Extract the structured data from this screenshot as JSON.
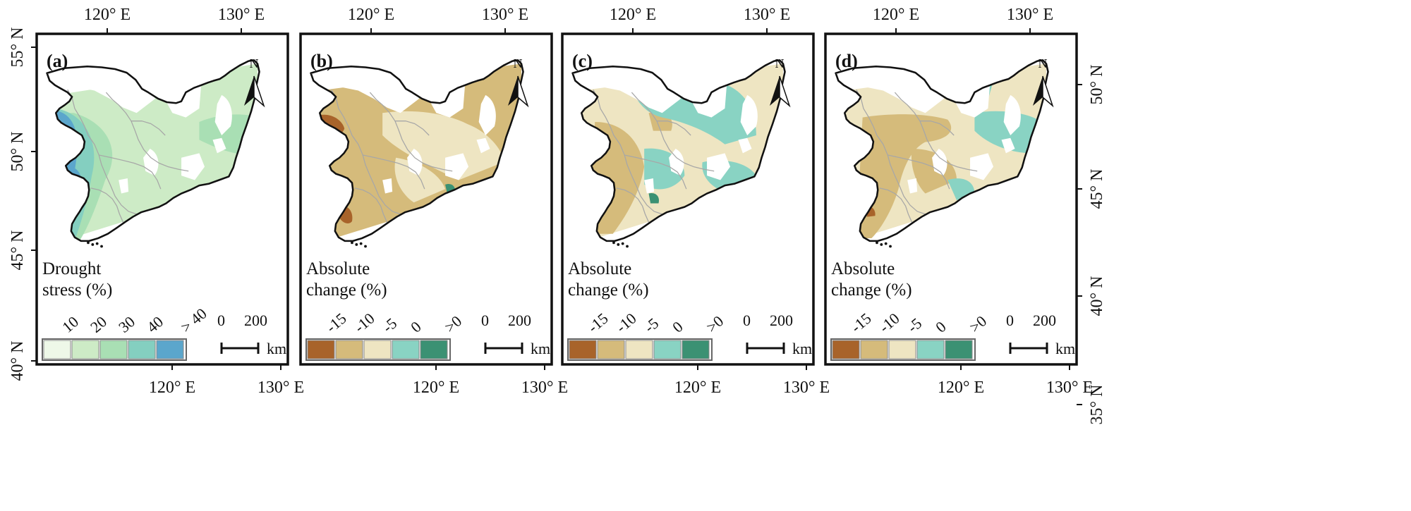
{
  "top_axis": {
    "labels": [
      "120° E",
      "130° E"
    ]
  },
  "bottom_axis": {
    "labels": [
      "120° E",
      "130° E"
    ]
  },
  "left_axis": {
    "labels": [
      "55° N",
      "50° N",
      "45° N",
      "40° N"
    ]
  },
  "right_axis": {
    "labels": [
      "50° N",
      "45° N",
      "40° N",
      "35° N"
    ]
  },
  "north_arrow": {
    "label": "N",
    "icon": "north-arrow-icon"
  },
  "scale_bar": {
    "label_0": "0",
    "label_200": "200",
    "unit": "km"
  },
  "province_border_color": "#a7a7a7",
  "panels": [
    {
      "id": "a",
      "label": "(a)",
      "legend_title_line1": "Drought",
      "legend_title_line2": "stress (%)",
      "legend_ticks": [
        "10",
        "20",
        "30",
        "40",
        "> 40"
      ],
      "legend_colors": [
        "#eef8e8",
        "#cdebc6",
        "#a9dfb4",
        "#84cfc0",
        "#5ba6cc"
      ],
      "map_fills": [
        "#cdebc6",
        "#a9dfb4",
        "#84cfc0",
        "#5ba6cc"
      ]
    },
    {
      "id": "b",
      "label": "(b)",
      "legend_title_line1": "Absolute",
      "legend_title_line2": "change (%)",
      "legend_ticks": [
        "-15",
        "-10",
        "-5",
        "0",
        ">0"
      ],
      "legend_colors": [
        "#a8632a",
        "#d5bb7b",
        "#eee5c2",
        "#89d3c3",
        "#3b9173"
      ],
      "map_fills": [
        "#d5bb7b",
        "#eee5c2",
        "#a8632a",
        "#89d3c3",
        "#3b9173"
      ]
    },
    {
      "id": "c",
      "label": "(c)",
      "legend_title_line1": "Absolute",
      "legend_title_line2": "change (%)",
      "legend_ticks": [
        "-15",
        "-10",
        "-5",
        "0",
        ">0"
      ],
      "legend_colors": [
        "#a8632a",
        "#d5bb7b",
        "#eee5c2",
        "#89d3c3",
        "#3b9173"
      ],
      "map_fills": [
        "#eee5c2",
        "#d5bb7b",
        "#89d3c3",
        "#3b9173",
        "#a8632a"
      ]
    },
    {
      "id": "d",
      "label": "(d)",
      "legend_title_line1": "Absolute",
      "legend_title_line2": "change (%)",
      "legend_ticks": [
        "-15",
        "-10",
        "-5",
        "0",
        ">0"
      ],
      "legend_colors": [
        "#a8632a",
        "#d5bb7b",
        "#eee5c2",
        "#89d3c3",
        "#3b9173"
      ],
      "map_fills": [
        "#eee5c2",
        "#d5bb7b",
        "#89d3c3",
        "#3b9173",
        "#a8632a"
      ]
    }
  ]
}
